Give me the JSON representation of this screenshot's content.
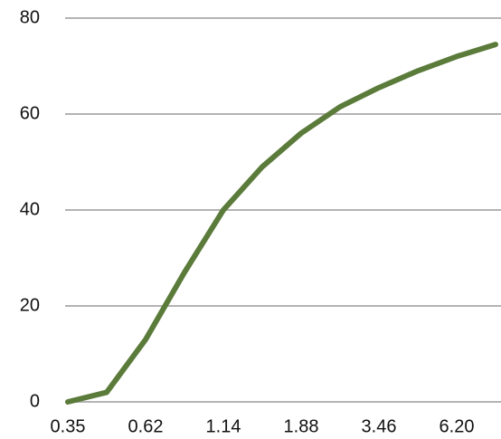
{
  "chart_data": {
    "type": "line",
    "categories": [
      "0.35",
      null,
      "0.62",
      null,
      "1.14",
      null,
      "1.88",
      null,
      "3.46",
      null,
      "6.20",
      null
    ],
    "series": [
      {
        "color": "#5b7b3b",
        "values": [
          0,
          2,
          13,
          27,
          40,
          49,
          56,
          61.5,
          65.5,
          69,
          72,
          74.5
        ]
      }
    ],
    "ylim": [
      0,
      80
    ],
    "yticks": [
      0,
      20,
      40,
      60,
      80
    ],
    "grid": true
  }
}
